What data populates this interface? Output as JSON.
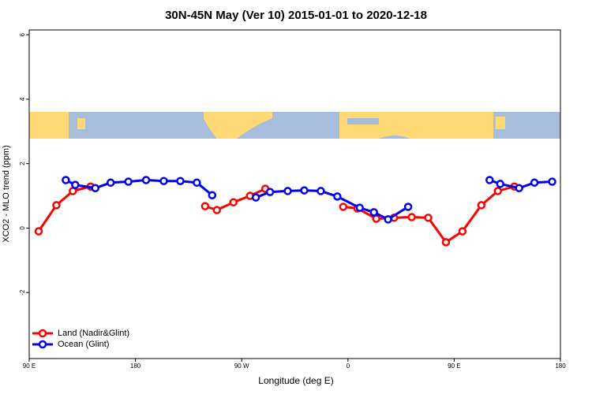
{
  "chart_data": {
    "type": "line",
    "title": "30N-45N May (Ver 10)   2015-01-01 to 2020-12-18",
    "x_label": "Longitude (deg E)",
    "y_label": "XCO2 - MLO trend (ppm)",
    "xlim": [
      90,
      540
    ],
    "xticks": [
      {
        "value": 90,
        "label": "90 E"
      },
      180,
      {
        "value": 270,
        "label": "90 W"
      },
      {
        "value": 360,
        "label": "0"
      },
      {
        "value": 450,
        "label": "90 E"
      },
      {
        "value": 540,
        "label": "180"
      }
    ],
    "ylim": [
      -4.05,
      6.15
    ],
    "yticks": [
      -2,
      0,
      2,
      4,
      6
    ],
    "legend": "bottom-left",
    "series": [
      {
        "name": "Land (Nadir&Glint)",
        "color": "#ff0000",
        "x": [
          98,
          113,
          127,
          142,
          null,
          239,
          249,
          263,
          277,
          290,
          null,
          356,
          368,
          384,
          399,
          414,
          428,
          443,
          457,
          473,
          487,
          501
        ],
        "values": [
          -0.1,
          0.71,
          1.15,
          1.29,
          null,
          0.68,
          0.56,
          0.8,
          1.0,
          1.22,
          null,
          0.66,
          0.61,
          0.29,
          0.32,
          0.34,
          0.32,
          -0.44,
          -0.1,
          0.71,
          1.15,
          1.29
        ]
      },
      {
        "name": "Ocean (Glint)",
        "color": "#0000ee",
        "x": [
          121,
          129,
          146,
          159,
          174,
          189,
          204,
          218,
          232,
          245,
          null,
          282,
          294,
          309,
          323,
          337,
          351,
          370,
          382,
          394,
          411,
          null,
          480,
          489,
          505,
          518,
          533
        ],
        "values": [
          1.49,
          1.34,
          1.24,
          1.41,
          1.44,
          1.49,
          1.46,
          1.46,
          1.41,
          1.02,
          null,
          0.95,
          1.12,
          1.15,
          1.17,
          1.15,
          0.98,
          0.63,
          0.49,
          0.27,
          0.66,
          null,
          1.49,
          1.37,
          1.24,
          1.41,
          1.44
        ]
      }
    ]
  }
}
